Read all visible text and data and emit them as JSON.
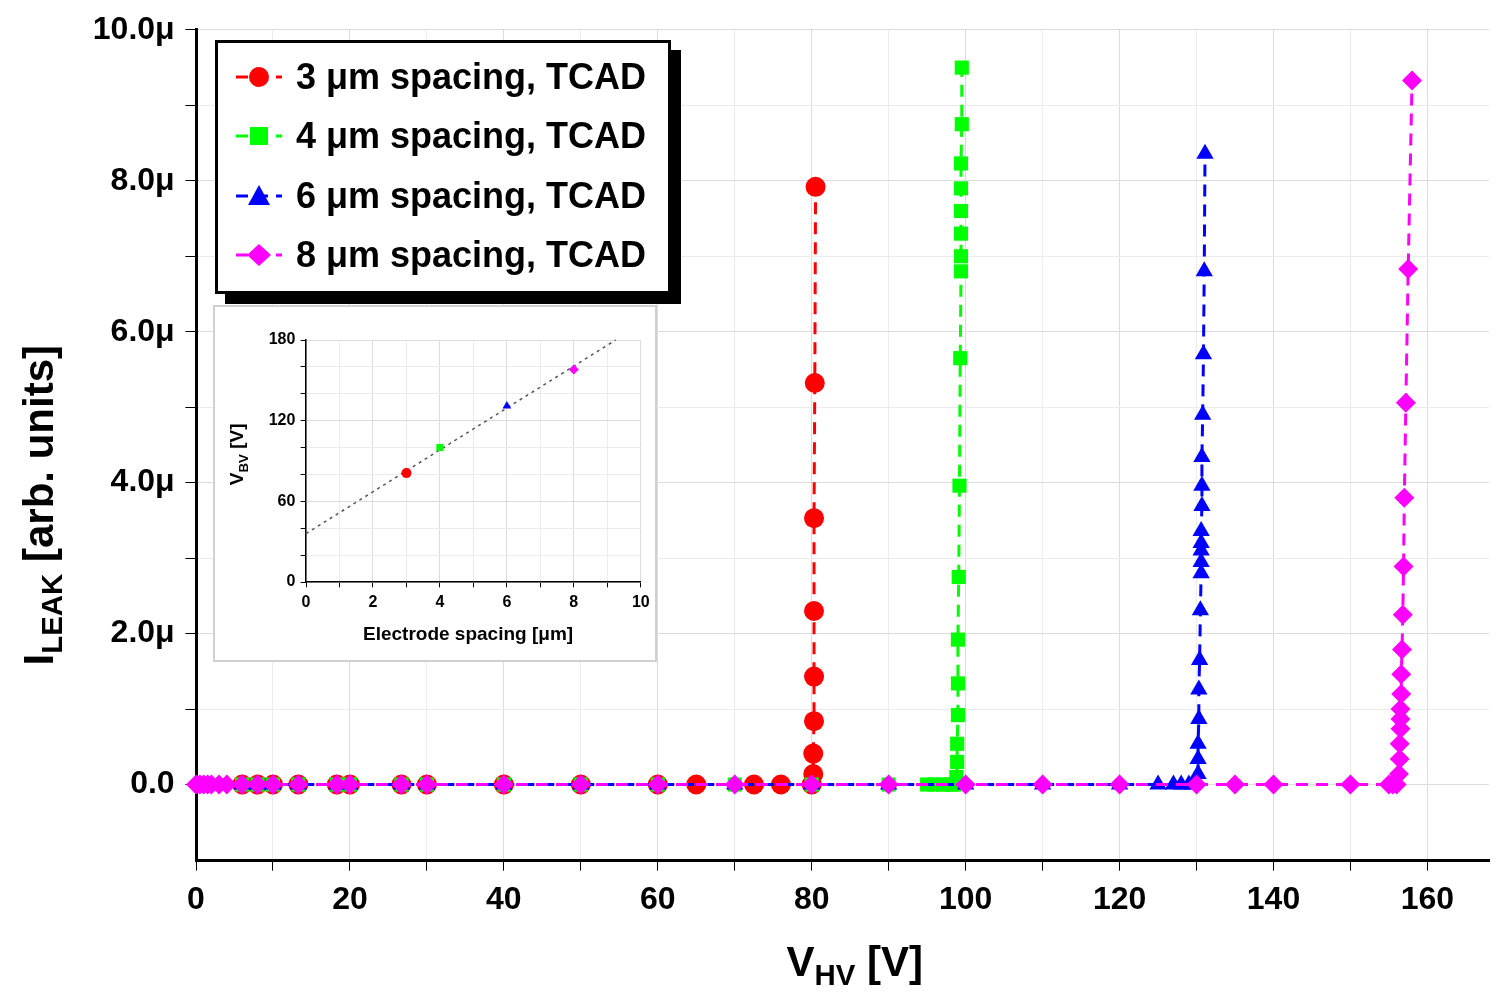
{
  "chart_data": [
    {
      "type": "line",
      "xlabel": "V$_{HV}$ [V]",
      "ylabel": "I$_{LEAK}$ [arb. units]",
      "xlim": [
        0,
        168
      ],
      "ylim": [
        -1,
        10
      ],
      "xticks": [
        0,
        {
          "value": 10,
          "label": null
        },
        20,
        {
          "value": 30,
          "label": null
        },
        40,
        {
          "value": 50,
          "label": null
        },
        60,
        {
          "value": 70,
          "label": null
        },
        80,
        {
          "value": 90,
          "label": null
        },
        100,
        {
          "value": 110,
          "label": null
        },
        120,
        {
          "value": 130,
          "label": null
        },
        140,
        {
          "value": 150,
          "label": null
        },
        160
      ],
      "yticks": [
        {
          "value": 0,
          "label": "0.0"
        },
        {
          "value": 1,
          "label": null
        },
        {
          "value": 2,
          "label": "2.0μ"
        },
        {
          "value": 3,
          "label": null
        },
        {
          "value": 4,
          "label": "4.0μ"
        },
        {
          "value": 5,
          "label": null
        },
        {
          "value": 6,
          "label": "6.0μ"
        },
        {
          "value": 7,
          "label": null
        },
        {
          "value": 8,
          "label": "8.0μ"
        },
        {
          "value": 9,
          "label": null
        },
        {
          "value": 10,
          "label": "10.0μ"
        }
      ],
      "grid": true,
      "legend": "top left",
      "line_style": "dashed",
      "series": [
        {
          "name": "3 μm spacing, TCAD",
          "color": "#ff0000",
          "marker": "circle",
          "x": [
            6,
            8,
            10,
            13.3,
            18.3,
            20,
            26.7,
            30,
            40,
            50,
            60,
            65,
            72.5,
            76,
            80,
            80.2,
            80.2,
            80.3,
            80.3,
            80.3,
            80.3,
            80.4,
            80.5
          ],
          "values": [
            0,
            0,
            0,
            0,
            0,
            0,
            0,
            0,
            0,
            0,
            0,
            0,
            0,
            0,
            0,
            0.14,
            0.41,
            0.84,
            1.43,
            2.3,
            3.53,
            5.32,
            7.92
          ]
        },
        {
          "name": "4 μm spacing, TCAD",
          "color": "#00ff00",
          "marker": "square",
          "x": [
            6,
            8,
            10,
            13.3,
            18.3,
            20,
            26.7,
            30,
            40,
            50,
            60,
            70,
            80,
            90,
            95,
            96,
            97,
            98,
            98.5,
            98.8,
            98.9,
            98.9,
            99,
            99,
            99,
            99.1,
            99.2,
            99.3,
            99.4,
            99.4,
            99.4,
            99.4,
            99.4,
            99.4,
            99.5,
            99.5
          ],
          "values": [
            0,
            0,
            0,
            0,
            0,
            0,
            0,
            0,
            0,
            0,
            0,
            0,
            0,
            0,
            0,
            0,
            0,
            0,
            0,
            0.1,
            0.3,
            0.54,
            0.92,
            1.34,
            1.92,
            2.75,
            3.96,
            5.65,
            6.8,
            7.0,
            7.3,
            7.6,
            7.9,
            8.23,
            8.75,
            9.5
          ]
        },
        {
          "name": "6 μm spacing, TCAD",
          "color": "#0000ff",
          "marker": "triangle",
          "x": [
            6,
            8,
            10,
            13.3,
            18.3,
            20,
            26.7,
            30,
            40,
            50,
            60,
            70,
            80,
            90,
            100,
            110,
            120,
            125,
            127,
            128,
            129,
            129.5,
            130.2,
            130.2,
            130.2,
            130.3,
            130.3,
            130.4,
            130.5,
            130.6,
            130.6,
            130.6,
            130.6,
            130.6,
            130.7,
            130.7,
            130.7,
            130.8,
            130.9,
            131,
            131.1
          ],
          "values": [
            0,
            0,
            0,
            0,
            0,
            0,
            0,
            0,
            0,
            0,
            0,
            0,
            0,
            0,
            0,
            0,
            0,
            0,
            0,
            0,
            0,
            0,
            0.14,
            0.34,
            0.54,
            0.87,
            1.26,
            1.65,
            2.31,
            2.8,
            2.95,
            3.1,
            3.2,
            3.36,
            3.69,
            3.96,
            4.34,
            4.9,
            5.7,
            6.8,
            8.36
          ]
        },
        {
          "name": "8 μm spacing, TCAD",
          "color": "#ff00ff",
          "marker": "diamond",
          "x": [
            0,
            0.5,
            1,
            1.5,
            2,
            3,
            4,
            6,
            8,
            10,
            13.3,
            18.3,
            20,
            26.7,
            30,
            40,
            50,
            60,
            70,
            80,
            90,
            100,
            110,
            120,
            130,
            135,
            140,
            150,
            155,
            155.5,
            156,
            156.3,
            156.4,
            156.4,
            156.5,
            156.5,
            156.5,
            156.6,
            156.6,
            156.7,
            156.8,
            156.9,
            157,
            157.2,
            157.5,
            158
          ],
          "values": [
            0,
            0,
            0,
            0,
            0,
            0,
            0,
            0,
            0,
            0,
            0,
            0,
            0,
            0,
            0,
            0,
            0,
            0,
            0,
            0,
            0,
            0,
            0,
            0,
            0,
            0,
            0,
            0,
            0,
            0,
            0,
            0.14,
            0.34,
            0.54,
            0.74,
            0.87,
            1.0,
            1.2,
            1.46,
            1.79,
            2.25,
            2.89,
            3.8,
            5.06,
            6.83,
            9.33
          ]
        }
      ]
    },
    {
      "type": "scatter",
      "xlabel": "Electrode spacing [μm]",
      "ylabel": "V$_{BV}$ [V]",
      "xlim": [
        0,
        10
      ],
      "ylim": [
        0,
        180
      ],
      "xticks": [
        0,
        {
          "value": 1,
          "label": null
        },
        2,
        {
          "value": 3,
          "label": null
        },
        4,
        {
          "value": 5,
          "label": null
        },
        6,
        {
          "value": 7,
          "label": null
        },
        8,
        {
          "value": 9,
          "label": null
        },
        10
      ],
      "yticks": [
        0,
        {
          "value": 20,
          "label": null
        },
        {
          "value": 40,
          "label": null
        },
        60,
        {
          "value": 80,
          "label": null
        },
        {
          "value": 100,
          "label": null
        },
        120,
        {
          "value": 140,
          "label": null
        },
        {
          "value": 160,
          "label": null
        },
        180
      ],
      "grid": true,
      "series": [
        {
          "type": "line",
          "color": "#555555",
          "marker": "none",
          "line_style": "dotted",
          "x": [
            0,
            9.25
          ],
          "values": [
            36,
            180
          ]
        },
        {
          "color": "#ff0000",
          "marker": "circle",
          "x": [
            3
          ],
          "values": [
            81
          ]
        },
        {
          "color": "#00ff00",
          "marker": "square",
          "x": [
            4
          ],
          "values": [
            100
          ]
        },
        {
          "color": "#0000ff",
          "marker": "triangle",
          "x": [
            6
          ],
          "values": [
            131
          ]
        },
        {
          "color": "#ff00ff",
          "marker": "diamond",
          "x": [
            8
          ],
          "values": [
            158
          ]
        }
      ]
    }
  ]
}
